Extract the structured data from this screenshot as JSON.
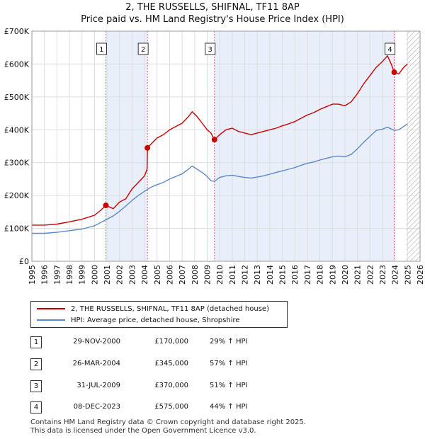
{
  "chart_data": {
    "type": "line",
    "title": "2, THE RUSSELLS, SHIFNAL, TF11 8AP",
    "subtitle": "Price paid vs. HM Land Registry's House Price Index (HPI)",
    "xlim": [
      1995,
      2026
    ],
    "ylim": [
      0,
      700000
    ],
    "x_ticks": [
      1995,
      1996,
      1997,
      1998,
      1999,
      2000,
      2001,
      2002,
      2003,
      2004,
      2005,
      2006,
      2007,
      2008,
      2009,
      2010,
      2011,
      2012,
      2013,
      2014,
      2015,
      2016,
      2017,
      2018,
      2019,
      2020,
      2021,
      2022,
      2023,
      2024,
      2025,
      2026
    ],
    "y_ticks": [
      {
        "value": 0,
        "label": "£0"
      },
      {
        "value": 100000,
        "label": "£100K"
      },
      {
        "value": 200000,
        "label": "£200K"
      },
      {
        "value": 300000,
        "label": "£300K"
      },
      {
        "value": 400000,
        "label": "£400K"
      },
      {
        "value": 500000,
        "label": "£500K"
      },
      {
        "value": 600000,
        "label": "£600K"
      },
      {
        "value": 700000,
        "label": "£700K"
      }
    ],
    "grid": true,
    "forecast_from": 2024.9,
    "shaded_ranges": [
      [
        2000.91,
        2004.23
      ],
      [
        2009.58,
        2023.94
      ]
    ],
    "series": [
      {
        "name": "2, THE RUSSELLS, SHIFNAL, TF11 8AP (detached house)",
        "color": "#cc0000",
        "points": [
          [
            1995.0,
            110000
          ],
          [
            1996.0,
            110000
          ],
          [
            1997.0,
            113000
          ],
          [
            1998.0,
            120000
          ],
          [
            1999.0,
            128000
          ],
          [
            2000.0,
            140000
          ],
          [
            2000.5,
            155000
          ],
          [
            2000.91,
            170000
          ],
          [
            2001.5,
            160000
          ],
          [
            2002.0,
            180000
          ],
          [
            2002.5,
            190000
          ],
          [
            2003.0,
            220000
          ],
          [
            2003.5,
            240000
          ],
          [
            2004.0,
            260000
          ],
          [
            2004.2,
            280000
          ],
          [
            2004.23,
            345000
          ],
          [
            2004.6,
            360000
          ],
          [
            2005.0,
            375000
          ],
          [
            2005.5,
            385000
          ],
          [
            2006.0,
            400000
          ],
          [
            2006.5,
            410000
          ],
          [
            2007.0,
            420000
          ],
          [
            2007.5,
            440000
          ],
          [
            2007.8,
            455000
          ],
          [
            2008.2,
            440000
          ],
          [
            2008.6,
            420000
          ],
          [
            2009.0,
            400000
          ],
          [
            2009.3,
            390000
          ],
          [
            2009.58,
            370000
          ],
          [
            2010.0,
            385000
          ],
          [
            2010.5,
            400000
          ],
          [
            2011.0,
            405000
          ],
          [
            2011.5,
            395000
          ],
          [
            2012.0,
            390000
          ],
          [
            2012.5,
            385000
          ],
          [
            2013.0,
            390000
          ],
          [
            2013.5,
            395000
          ],
          [
            2014.0,
            400000
          ],
          [
            2014.5,
            405000
          ],
          [
            2015.0,
            412000
          ],
          [
            2015.5,
            418000
          ],
          [
            2016.0,
            425000
          ],
          [
            2016.5,
            435000
          ],
          [
            2017.0,
            445000
          ],
          [
            2017.5,
            452000
          ],
          [
            2018.0,
            462000
          ],
          [
            2018.5,
            470000
          ],
          [
            2019.0,
            478000
          ],
          [
            2019.5,
            478000
          ],
          [
            2020.0,
            473000
          ],
          [
            2020.5,
            485000
          ],
          [
            2021.0,
            510000
          ],
          [
            2021.5,
            540000
          ],
          [
            2022.0,
            565000
          ],
          [
            2022.5,
            590000
          ],
          [
            2023.0,
            608000
          ],
          [
            2023.4,
            625000
          ],
          [
            2023.7,
            600000
          ],
          [
            2023.94,
            575000
          ],
          [
            2024.3,
            570000
          ],
          [
            2024.7,
            590000
          ],
          [
            2025.0,
            600000
          ]
        ]
      },
      {
        "name": "HPI: Average price, detached house, Shropshire",
        "color": "#5b8ac6",
        "points": [
          [
            1995.0,
            85000
          ],
          [
            1996.0,
            85000
          ],
          [
            1997.0,
            88000
          ],
          [
            1998.0,
            93000
          ],
          [
            1999.0,
            98000
          ],
          [
            2000.0,
            108000
          ],
          [
            2000.5,
            118000
          ],
          [
            2001.0,
            128000
          ],
          [
            2001.5,
            138000
          ],
          [
            2002.0,
            152000
          ],
          [
            2002.5,
            168000
          ],
          [
            2003.0,
            185000
          ],
          [
            2003.5,
            200000
          ],
          [
            2004.0,
            213000
          ],
          [
            2004.5,
            225000
          ],
          [
            2005.0,
            233000
          ],
          [
            2005.5,
            240000
          ],
          [
            2006.0,
            250000
          ],
          [
            2006.5,
            258000
          ],
          [
            2007.0,
            266000
          ],
          [
            2007.5,
            280000
          ],
          [
            2007.8,
            290000
          ],
          [
            2008.2,
            280000
          ],
          [
            2008.6,
            270000
          ],
          [
            2009.0,
            258000
          ],
          [
            2009.3,
            245000
          ],
          [
            2009.58,
            243000
          ],
          [
            2010.0,
            255000
          ],
          [
            2010.5,
            260000
          ],
          [
            2011.0,
            262000
          ],
          [
            2011.5,
            258000
          ],
          [
            2012.0,
            255000
          ],
          [
            2012.5,
            253000
          ],
          [
            2013.0,
            256000
          ],
          [
            2013.5,
            260000
          ],
          [
            2014.0,
            265000
          ],
          [
            2014.5,
            270000
          ],
          [
            2015.0,
            275000
          ],
          [
            2015.5,
            280000
          ],
          [
            2016.0,
            285000
          ],
          [
            2016.5,
            292000
          ],
          [
            2017.0,
            298000
          ],
          [
            2017.5,
            302000
          ],
          [
            2018.0,
            308000
          ],
          [
            2018.5,
            313000
          ],
          [
            2019.0,
            318000
          ],
          [
            2019.5,
            320000
          ],
          [
            2020.0,
            318000
          ],
          [
            2020.5,
            325000
          ],
          [
            2021.0,
            342000
          ],
          [
            2021.5,
            362000
          ],
          [
            2022.0,
            380000
          ],
          [
            2022.5,
            398000
          ],
          [
            2023.0,
            402000
          ],
          [
            2023.4,
            408000
          ],
          [
            2023.94,
            398000
          ],
          [
            2024.3,
            400000
          ],
          [
            2024.7,
            410000
          ],
          [
            2025.0,
            418000
          ]
        ]
      }
    ],
    "transactions": [
      {
        "id": "1",
        "x": 2000.91,
        "price": 170000,
        "date": "29-NOV-2000",
        "price_label": "£170,000",
        "hpi_label": "29% ↑ HPI"
      },
      {
        "id": "2",
        "x": 2004.23,
        "price": 345000,
        "date": "26-MAR-2004",
        "price_label": "£345,000",
        "hpi_label": "57% ↑ HPI"
      },
      {
        "id": "3",
        "x": 2009.58,
        "price": 370000,
        "date": "31-JUL-2009",
        "price_label": "£370,000",
        "hpi_label": "51% ↑ HPI"
      },
      {
        "id": "4",
        "x": 2023.94,
        "price": 575000,
        "date": "08-DEC-2023",
        "price_label": "£575,000",
        "hpi_label": "44% ↑ HPI"
      }
    ]
  },
  "legend": {
    "property_label": "2, THE RUSSELLS, SHIFNAL, TF11 8AP (detached house)",
    "hpi_label": "HPI: Average price, detached house, Shropshire"
  },
  "colors": {
    "property": "#cc0000",
    "hpi": "#5b8ac6",
    "shade": "#e8eefa",
    "marker_line": "#e06666"
  },
  "footer": {
    "line1": "Contains HM Land Registry data © Crown copyright and database right 2025.",
    "line2": "This data is licensed under the Open Government Licence v3.0."
  }
}
